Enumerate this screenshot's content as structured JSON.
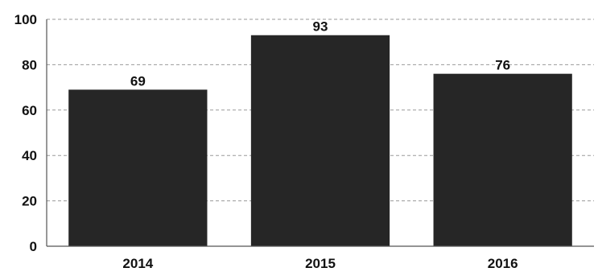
{
  "chart_data": {
    "type": "bar",
    "categories": [
      "2014",
      "2015",
      "2016"
    ],
    "values": [
      69,
      93,
      76
    ],
    "data_labels": [
      "69",
      "93",
      "76"
    ],
    "title": "",
    "xlabel": "",
    "ylabel": "",
    "ylim": [
      0,
      100
    ],
    "yticks": [
      0,
      20,
      40,
      60,
      80,
      100
    ],
    "grid": true,
    "legend": "none",
    "bar_color": "#262626"
  }
}
